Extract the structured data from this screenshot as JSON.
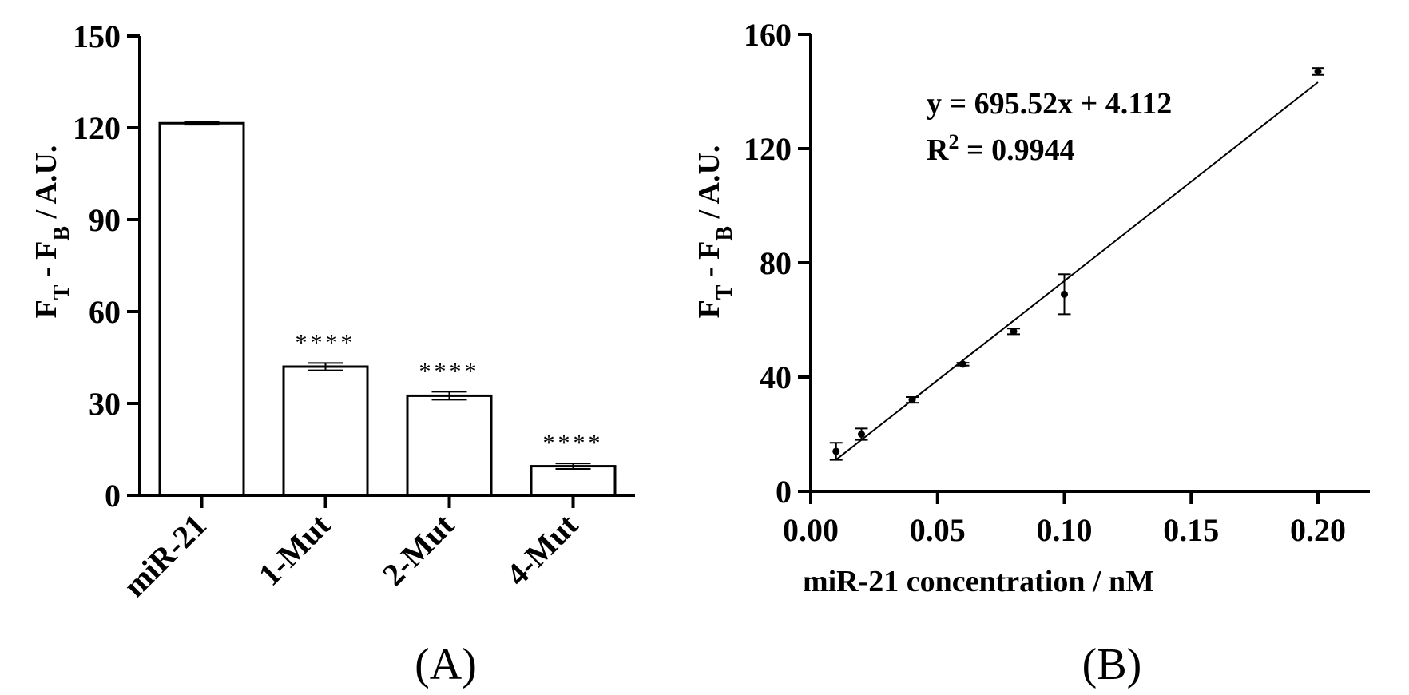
{
  "chart_data": [
    {
      "type": "bar",
      "panel_label": "(A)",
      "categories": [
        "miR-21",
        "1-Mut",
        "2-Mut",
        "4-Mut"
      ],
      "values": [
        121.5,
        42,
        32.5,
        9.5
      ],
      "errors": [
        0.5,
        1.2,
        1.3,
        0.9
      ],
      "significance": [
        "",
        "****",
        "****",
        "****"
      ],
      "ylabel_main": "F",
      "ylabel_sub1": "T",
      "ylabel_mid": " - F",
      "ylabel_sub2": "B",
      "ylabel_tail": " / A.U.",
      "ylim": [
        0,
        150
      ],
      "yticks": [
        0,
        30,
        60,
        90,
        120,
        150
      ],
      "ytick_labels": [
        "0",
        "30",
        "60",
        "90",
        "120",
        "150"
      ],
      "grid": false
    },
    {
      "type": "scatter",
      "panel_label": "(B)",
      "x": [
        0.01,
        0.02,
        0.04,
        0.06,
        0.08,
        0.1,
        0.2
      ],
      "y": [
        14,
        20,
        32,
        44.5,
        56,
        69,
        147
      ],
      "errors": [
        3,
        2,
        1,
        0.5,
        1,
        7,
        1.2
      ],
      "fit": {
        "slope": 695.52,
        "intercept": 4.112,
        "x_range": [
          0.01,
          0.2
        ]
      },
      "equation": "y = 695.52x + 4.112",
      "r2_prefix": "R",
      "r2_sup": "2",
      "r2_suffix": " = 0.9944",
      "xlabel": "miR-21 concentration / nM",
      "ylabel_main": "F",
      "ylabel_sub1": "T",
      "ylabel_mid": " - F",
      "ylabel_sub2": "B",
      "ylabel_tail": " / A.U.",
      "xlim": [
        0,
        0.2
      ],
      "ylim": [
        0,
        160
      ],
      "xticks": [
        0,
        0.05,
        0.1,
        0.15,
        0.2
      ],
      "xtick_labels": [
        "0.00",
        "0.05",
        "0.10",
        "0.15",
        "0.20"
      ],
      "yticks": [
        0,
        40,
        80,
        120,
        160
      ],
      "ytick_labels": [
        "0",
        "40",
        "80",
        "120",
        "160"
      ],
      "grid": false
    }
  ]
}
